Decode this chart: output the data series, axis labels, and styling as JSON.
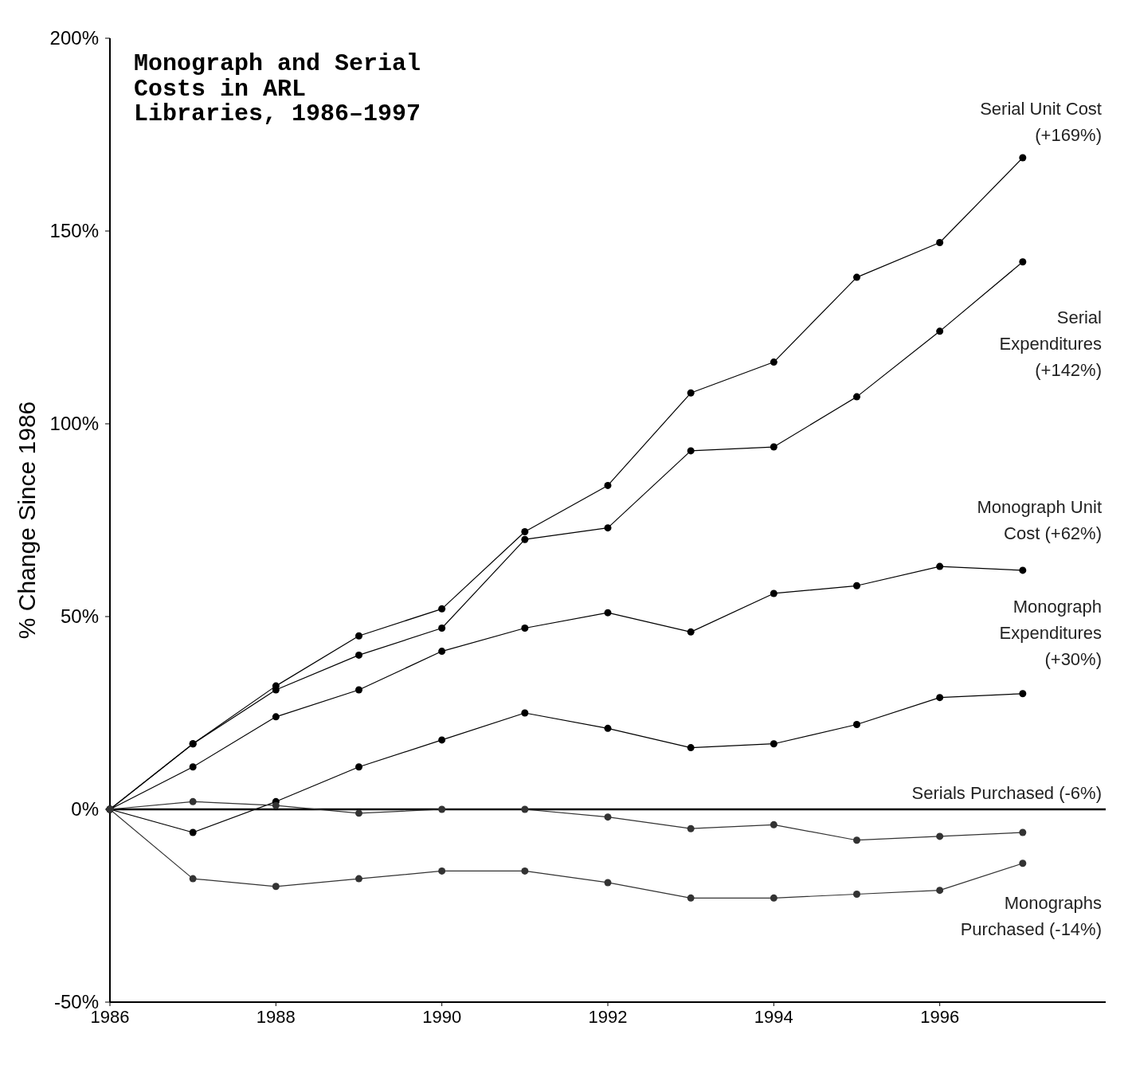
{
  "chart_data": {
    "type": "line",
    "title": "Monograph and Serial Costs in ARL Libraries, 1986–1997",
    "ylabel": "% Change Since 1986",
    "x": [
      1986,
      1987,
      1988,
      1989,
      1990,
      1991,
      1992,
      1993,
      1994,
      1995,
      1996,
      1997
    ],
    "xlim": [
      1986,
      1998
    ],
    "xticks": [
      1986,
      1988,
      1990,
      1992,
      1994,
      1996
    ],
    "ylim": [
      -50,
      200
    ],
    "yticks": [
      {
        "value": -50,
        "label": "-50%"
      },
      {
        "value": 0,
        "label": "0%"
      },
      {
        "value": 50,
        "label": "50%"
      },
      {
        "value": 100,
        "label": "100%"
      },
      {
        "value": 150,
        "label": "150%"
      },
      {
        "value": 200,
        "label": "200%"
      }
    ],
    "grid": false,
    "marker": "circle",
    "line_style": "solid",
    "ref_lines": [
      {
        "axis": "y",
        "value": 0,
        "color": "#000000"
      }
    ],
    "series": [
      {
        "name": "Serial Unit Cost (+169%)",
        "color": "#000000",
        "values": [
          0,
          17,
          32,
          45,
          52,
          72,
          84,
          108,
          116,
          138,
          147,
          169
        ]
      },
      {
        "name": "Serial Expenditures (+142%)",
        "color": "#000000",
        "values": [
          0,
          17,
          31,
          40,
          47,
          70,
          73,
          93,
          94,
          107,
          124,
          142
        ]
      },
      {
        "name": "Monograph Unit Cost (+62%)",
        "color": "#000000",
        "values": [
          0,
          11,
          24,
          31,
          41,
          47,
          51,
          46,
          56,
          58,
          63,
          62
        ]
      },
      {
        "name": "Monograph Expenditures (+30%)",
        "color": "#000000",
        "values": [
          0,
          -6,
          2,
          11,
          18,
          25,
          21,
          16,
          17,
          22,
          29,
          30
        ]
      },
      {
        "name": "Serials Purchased (-6%)",
        "color": "#333333",
        "values": [
          0,
          2,
          1,
          -1,
          0,
          0,
          -2,
          -5,
          -4,
          -8,
          -7,
          -6
        ]
      },
      {
        "name": "Monographs Purchased (-14%)",
        "color": "#333333",
        "values": [
          0,
          -18,
          -20,
          -18,
          -16,
          -16,
          -19,
          -23,
          -23,
          -22,
          -21,
          -14
        ]
      }
    ]
  }
}
